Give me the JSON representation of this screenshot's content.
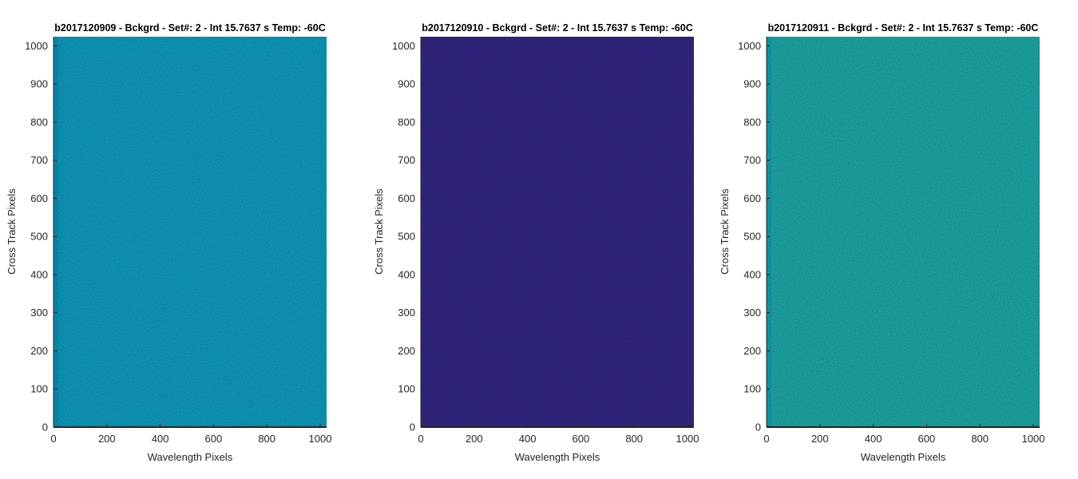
{
  "chart_data": [
    {
      "type": "heatmap",
      "title": "b2017120909 - Bckgrd - Set#: 2 - Int 15.7637 s Temp: -60C",
      "xlabel": "Wavelength Pixels",
      "ylabel": "Cross Track Pixels",
      "xlim": [
        0,
        1024
      ],
      "ylim": [
        0,
        1024
      ],
      "xticks": [
        "0",
        "200",
        "400",
        "600",
        "800",
        "1000"
      ],
      "yticks": [
        "0",
        "100",
        "200",
        "300",
        "400",
        "500",
        "600",
        "700",
        "800",
        "900",
        "1000"
      ],
      "fill_color": "#0fa3c7",
      "noise_color": "#2ab3d0",
      "edge_color": "#0a94bc"
    },
    {
      "type": "heatmap",
      "title": "b2017120910 - Bckgrd - Set#: 2 - Int 15.7637 s Temp: -60C",
      "xlabel": "Wavelength Pixels",
      "ylabel": "Cross Track Pixels",
      "xlim": [
        0,
        1024
      ],
      "ylim": [
        0,
        1024
      ],
      "xticks": [
        "0",
        "200",
        "400",
        "600",
        "800",
        "1000"
      ],
      "yticks": [
        "0",
        "100",
        "200",
        "300",
        "400",
        "500",
        "600",
        "700",
        "800",
        "900",
        "1000"
      ],
      "fill_color": "#352a8c",
      "noise_color": "#3a2f94",
      "edge_color": "#352a8c"
    },
    {
      "type": "heatmap",
      "title": "b2017120911 - Bckgrd - Set#: 2 - Int 15.7637 s Temp: -60C",
      "xlabel": "Wavelength Pixels",
      "ylabel": "Cross Track Pixels",
      "xlim": [
        0,
        1024
      ],
      "ylim": [
        0,
        1024
      ],
      "xticks": [
        "0",
        "200",
        "400",
        "600",
        "800",
        "1000"
      ],
      "yticks": [
        "0",
        "100",
        "200",
        "300",
        "400",
        "500",
        "600",
        "700",
        "800",
        "900",
        "1000"
      ],
      "fill_color": "#1fb0b0",
      "noise_color": "#5cbf98",
      "edge_color": "#15a3b8"
    }
  ]
}
